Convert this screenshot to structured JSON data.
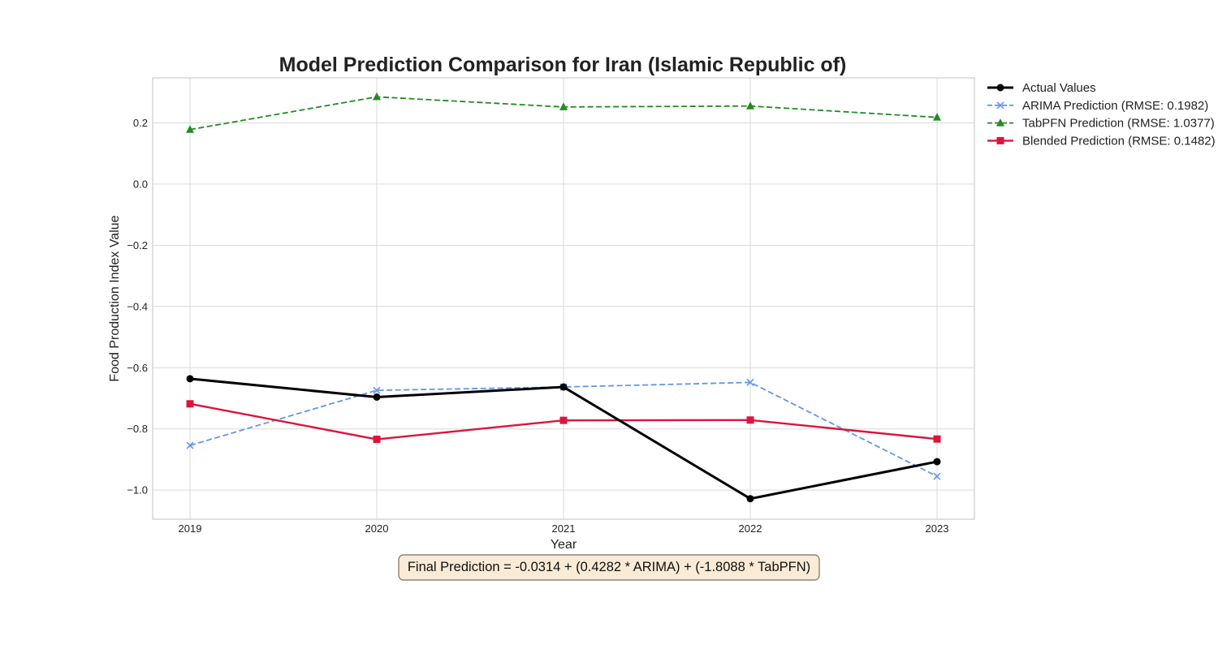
{
  "chart_data": {
    "type": "line",
    "title": "Model Prediction Comparison for Iran (Islamic Republic of)",
    "xlabel": "Year",
    "ylabel": "Food Production Index Value",
    "x": [
      2019,
      2020,
      2021,
      2022,
      2023
    ],
    "x_tick_labels": [
      "2019",
      "2020",
      "2021",
      "2022",
      "2023"
    ],
    "xlim": [
      2018.8,
      2023.2
    ],
    "ylim": [
      -1.095,
      0.347
    ],
    "y_ticks": [
      0.2,
      0.0,
      -0.2,
      -0.4,
      -0.6,
      -0.8,
      -1.0
    ],
    "y_tick_labels": [
      "0.2",
      "0.0",
      "−0.2",
      "−0.4",
      "−0.6",
      "−0.8",
      "−1.0"
    ],
    "grid": true,
    "legend_position": "outside right, top",
    "series": [
      {
        "name": "Actual Values",
        "values": [
          -0.636,
          -0.696,
          -0.663,
          -1.028,
          -0.907
        ],
        "color": "#000000",
        "dash": "solid",
        "marker": "circle"
      },
      {
        "name": "ARIMA Prediction (RMSE: 0.1982)",
        "values": [
          -0.854,
          -0.674,
          -0.663,
          -0.648,
          -0.955
        ],
        "color": "#6495ED",
        "dash": "dashed",
        "marker": "x"
      },
      {
        "name": "TabPFN Prediction (RMSE: 1.0377)",
        "values": [
          0.178,
          0.285,
          0.252,
          0.255,
          0.218
        ],
        "color": "#228B22",
        "dash": "dashed",
        "marker": "triangle"
      },
      {
        "name": "Blended Prediction (RMSE: 0.1482)",
        "values": [
          -0.718,
          -0.834,
          -0.772,
          -0.771,
          -0.833
        ],
        "color": "#DC143C",
        "dash": "solid",
        "marker": "square"
      }
    ],
    "annotation": "Final Prediction = -0.0314 + (0.4282 * ARIMA) + (-1.8088 * TabPFN)",
    "annotation_bg": "#F9EBD5"
  }
}
